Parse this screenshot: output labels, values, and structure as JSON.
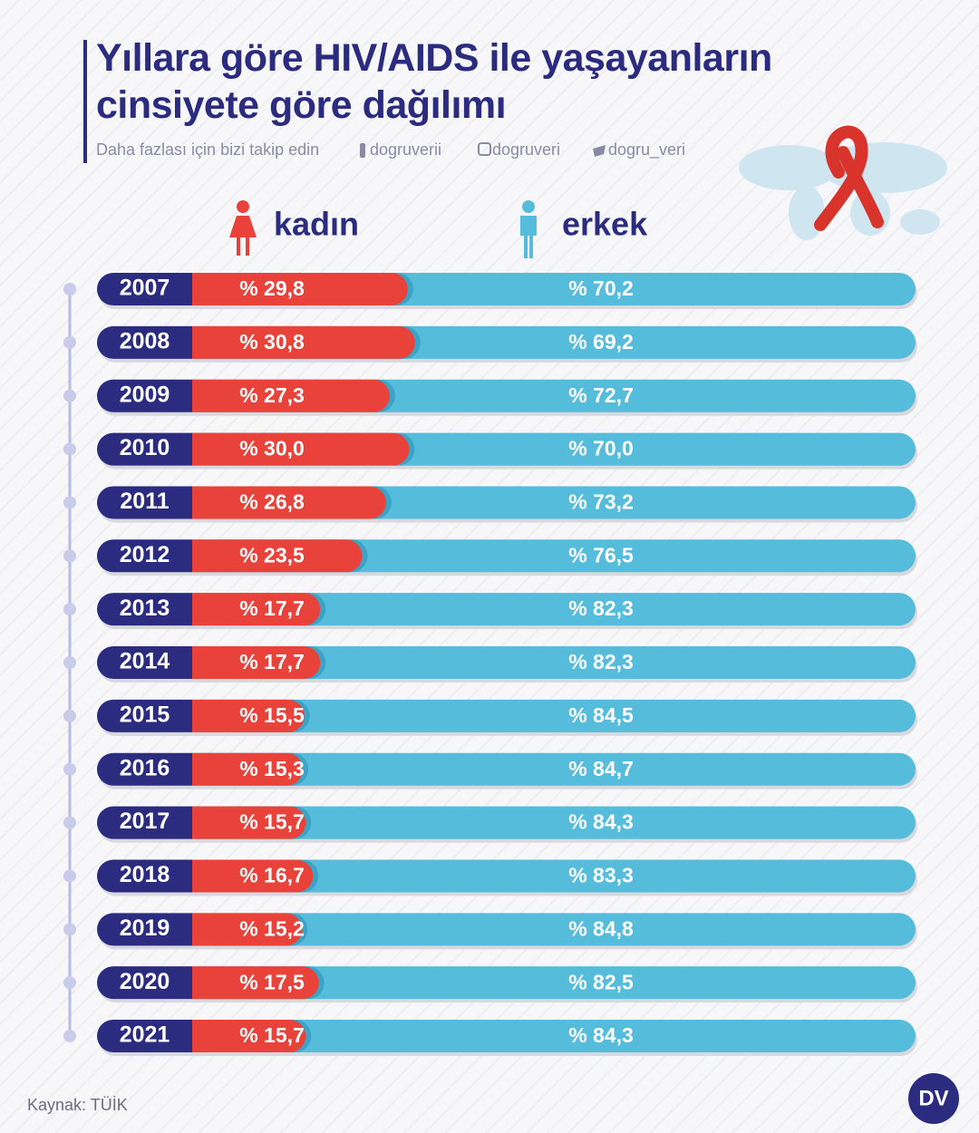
{
  "chart_data": {
    "type": "bar",
    "orientation": "horizontal",
    "stacked": true,
    "title": "Yıllara göre HIV/AIDS ile yaşayanların cinsiyete göre dağılımı",
    "subtitle": "Daha fazlası için bizi takip edin",
    "social": [
      "dogruverii",
      "dogruveri",
      "dogru_veri"
    ],
    "source": "Kaynak: TÜİK",
    "logo": "DV",
    "categories": [
      "2007",
      "2008",
      "2009",
      "2010",
      "2011",
      "2012",
      "2013",
      "2014",
      "2015",
      "2016",
      "2017",
      "2018",
      "2019",
      "2020",
      "2021"
    ],
    "category_color": "#2b2c80",
    "xlim": [
      0,
      100
    ],
    "series": [
      {
        "name": "kadın",
        "color": "#e8423a",
        "values": [
          29.8,
          30.8,
          27.3,
          30.0,
          26.8,
          23.5,
          17.7,
          17.7,
          15.5,
          15.3,
          15.7,
          16.7,
          15.2,
          17.5,
          15.7
        ],
        "value_labels": [
          "% 29,8",
          "% 30,8",
          "% 27,3",
          "% 30,0",
          "% 26,8",
          "% 23,5",
          "% 17,7",
          "% 17,7",
          "% 15,5",
          "% 15,3",
          "% 15,7",
          "% 16,7",
          "% 15,2",
          "% 17,5",
          "% 15,7"
        ]
      },
      {
        "name": "erkek",
        "color": "#56bcdc",
        "values": [
          70.2,
          69.2,
          72.7,
          70.0,
          73.2,
          76.5,
          82.3,
          82.3,
          84.5,
          84.7,
          84.3,
          83.3,
          84.8,
          82.5,
          84.3
        ],
        "value_labels": [
          "% 70,2",
          "% 69,2",
          "% 72,7",
          "% 70,0",
          "% 73,2",
          "% 76,5",
          "% 82,3",
          "% 82,3",
          "% 84,5",
          "% 84,7",
          "% 84,3",
          "% 83,3",
          "% 84,8",
          "% 82,5",
          "% 84,3"
        ]
      }
    ]
  }
}
